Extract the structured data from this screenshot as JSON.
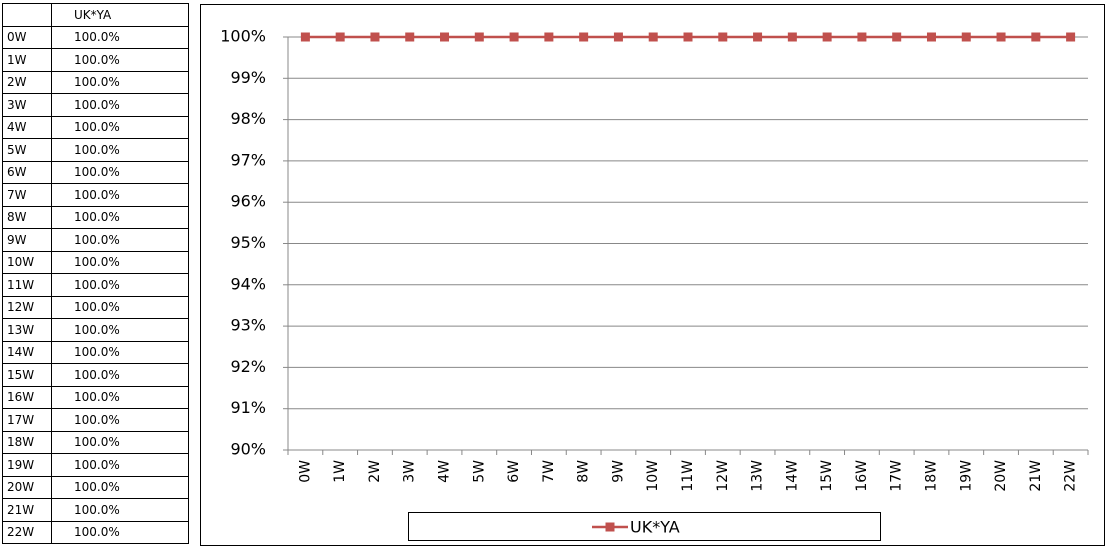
{
  "table": {
    "column": "UK*YA",
    "rows": [
      [
        "0W",
        "100.0%"
      ],
      [
        "1W",
        "100.0%"
      ],
      [
        "2W",
        "100.0%"
      ],
      [
        "3W",
        "100.0%"
      ],
      [
        "4W",
        "100.0%"
      ],
      [
        "5W",
        "100.0%"
      ],
      [
        "6W",
        "100.0%"
      ],
      [
        "7W",
        "100.0%"
      ],
      [
        "8W",
        "100.0%"
      ],
      [
        "9W",
        "100.0%"
      ],
      [
        "10W",
        "100.0%"
      ],
      [
        "11W",
        "100.0%"
      ],
      [
        "12W",
        "100.0%"
      ],
      [
        "13W",
        "100.0%"
      ],
      [
        "14W",
        "100.0%"
      ],
      [
        "15W",
        "100.0%"
      ],
      [
        "16W",
        "100.0%"
      ],
      [
        "17W",
        "100.0%"
      ],
      [
        "18W",
        "100.0%"
      ],
      [
        "19W",
        "100.0%"
      ],
      [
        "20W",
        "100.0%"
      ],
      [
        "21W",
        "100.0%"
      ],
      [
        "22W",
        "100.0%"
      ]
    ]
  },
  "chart_data": {
    "type": "line",
    "categories": [
      "0W",
      "1W",
      "2W",
      "3W",
      "4W",
      "5W",
      "6W",
      "7W",
      "8W",
      "9W",
      "10W",
      "11W",
      "12W",
      "13W",
      "14W",
      "15W",
      "16W",
      "17W",
      "18W",
      "19W",
      "20W",
      "21W",
      "22W"
    ],
    "series": [
      {
        "name": "UK*YA",
        "color": "#c0504d",
        "values": [
          100,
          100,
          100,
          100,
          100,
          100,
          100,
          100,
          100,
          100,
          100,
          100,
          100,
          100,
          100,
          100,
          100,
          100,
          100,
          100,
          100,
          100,
          100
        ]
      }
    ],
    "ylim": [
      90,
      100
    ],
    "yticks": [
      {
        "value": 90,
        "label": "90%"
      },
      {
        "value": 91,
        "label": "91%"
      },
      {
        "value": 92,
        "label": "92%"
      },
      {
        "value": 93,
        "label": "93%"
      },
      {
        "value": 94,
        "label": "94%"
      },
      {
        "value": 95,
        "label": "95%"
      },
      {
        "value": 96,
        "label": "96%"
      },
      {
        "value": 97,
        "label": "97%"
      },
      {
        "value": 98,
        "label": "98%"
      },
      {
        "value": 99,
        "label": "99%"
      },
      {
        "value": 100,
        "label": "100%"
      }
    ],
    "grid": true,
    "legend": "bottom"
  }
}
